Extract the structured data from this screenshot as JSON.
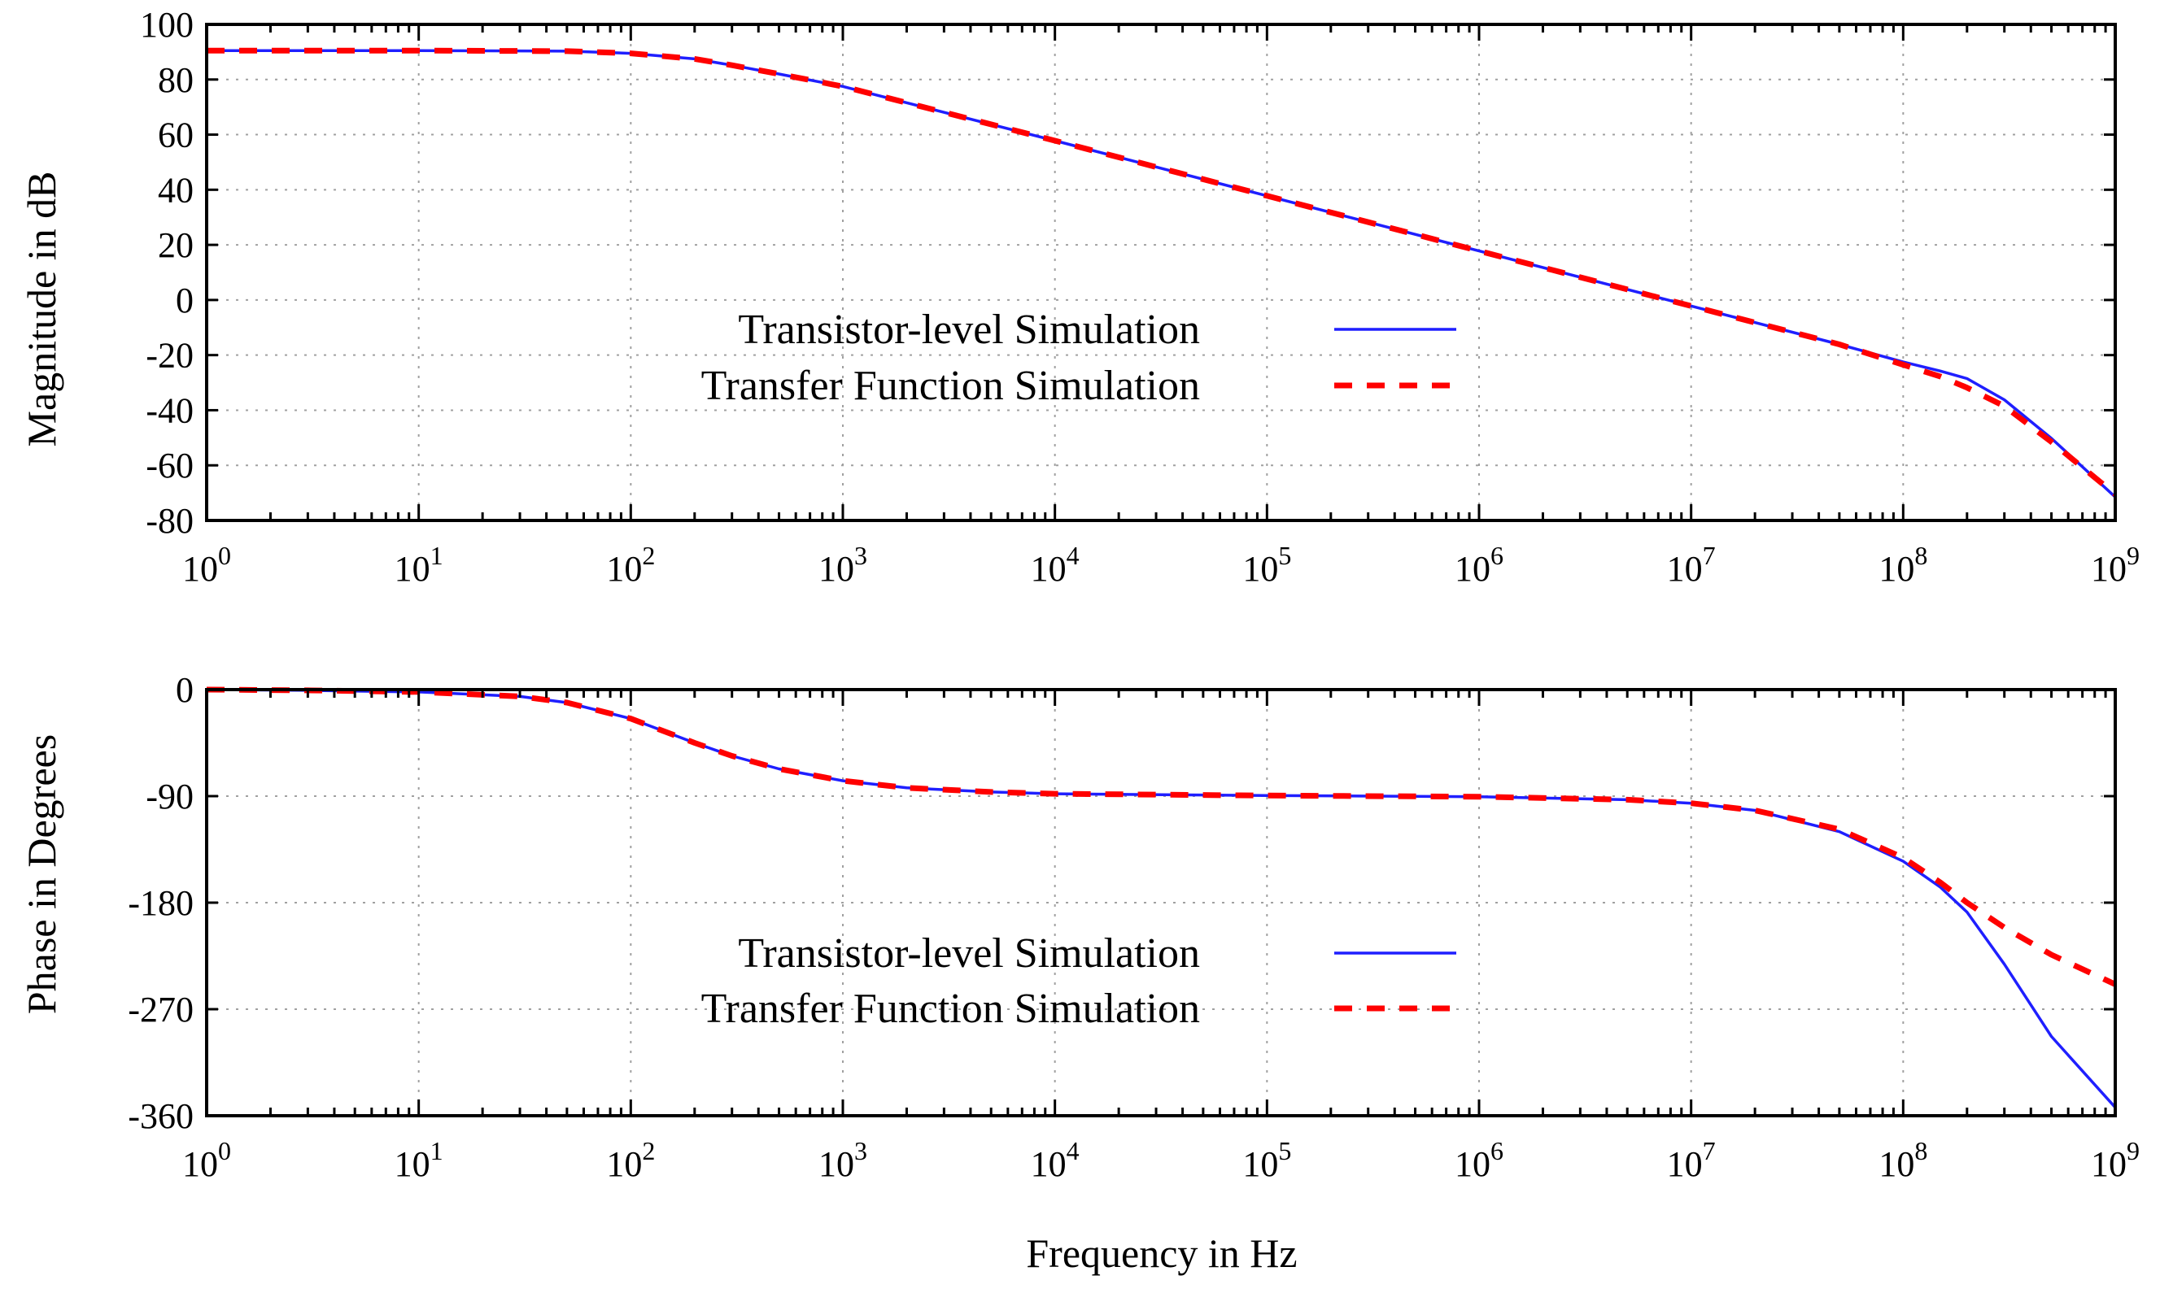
{
  "chart_data": [
    {
      "type": "line",
      "name": "magnitude",
      "ylabel": "Magnitude in dB",
      "xlabel": "",
      "xscale": "log",
      "xlim": [
        1,
        1000000000
      ],
      "ylim": [
        -80,
        100
      ],
      "yticks": [
        100,
        80,
        60,
        40,
        20,
        0,
        -20,
        -40,
        -60,
        -80
      ],
      "ytick_labels": [
        "100",
        "80",
        "60",
        "40",
        "20",
        "0",
        "-20",
        "-40",
        "-60",
        "-80"
      ],
      "xtick_base": "10",
      "xtick_exponents": [
        "0",
        "1",
        "2",
        "3",
        "4",
        "5",
        "6",
        "7",
        "8",
        "9"
      ],
      "grid": true,
      "legend": "center",
      "series": [
        {
          "name": "Transistor-level Simulation",
          "color": "#1f1fff",
          "style": "solid",
          "x": [
            1,
            10,
            50,
            100,
            200,
            300,
            500,
            1000,
            10000,
            100000,
            1000000,
            10000000,
            50000000,
            100000000,
            150000000,
            200000000,
            300000000,
            500000000,
            1000000000
          ],
          "y": [
            90.5,
            90.5,
            90.3,
            89.5,
            87.5,
            85.2,
            82,
            77.5,
            57.8,
            37.8,
            17.8,
            -2.2,
            -16.1,
            -22.5,
            -25.8,
            -28.5,
            -36.2,
            -50.2,
            -71.5
          ]
        },
        {
          "name": "Transfer Function Simulation",
          "color": "#ff0000",
          "style": "dashed",
          "x": [
            1,
            10,
            50,
            100,
            200,
            300,
            500,
            1000,
            10000,
            100000,
            1000000,
            10000000,
            50000000,
            100000000,
            150000000,
            200000000,
            300000000,
            500000000,
            1000000000
          ],
          "y": [
            90.5,
            90.5,
            90.3,
            89.5,
            87.5,
            85.2,
            82,
            77.5,
            57.8,
            37.8,
            17.8,
            -2.2,
            -16.1,
            -23.5,
            -27.8,
            -31.8,
            -38.5,
            -51.5,
            -70.5
          ]
        }
      ]
    },
    {
      "type": "line",
      "name": "phase",
      "ylabel": "Phase in Degrees",
      "xlabel": "Frequency in Hz",
      "xscale": "log",
      "xlim": [
        1,
        1000000000
      ],
      "ylim": [
        -360,
        0
      ],
      "yticks": [
        0,
        -90,
        -180,
        -270,
        -360
      ],
      "ytick_labels": [
        "0",
        "-90",
        "-180",
        "-270",
        "-360"
      ],
      "xtick_base": "10",
      "xtick_exponents": [
        "0",
        "1",
        "2",
        "3",
        "4",
        "5",
        "6",
        "7",
        "8",
        "9"
      ],
      "grid": true,
      "legend": "center",
      "series": [
        {
          "name": "Transistor-level Simulation",
          "color": "#1f1fff",
          "style": "solid",
          "x": [
            1,
            3,
            10,
            30,
            50,
            100,
            200,
            300,
            500,
            1000,
            2000,
            5000,
            10000,
            100000,
            1000000,
            5000000,
            10000000,
            20000000,
            50000000,
            100000000,
            150000000,
            200000000,
            300000000,
            500000000,
            1000000000
          ],
          "y": [
            0,
            -0.6,
            -2,
            -5.8,
            -11,
            -24.5,
            -45,
            -56,
            -67,
            -77,
            -83,
            -86.5,
            -88,
            -89.5,
            -90.5,
            -93,
            -96,
            -102,
            -120,
            -145,
            -167,
            -188,
            -232,
            -293,
            -353
          ]
        },
        {
          "name": "Transfer Function Simulation",
          "color": "#ff0000",
          "style": "dashed",
          "x": [
            1,
            3,
            10,
            30,
            50,
            100,
            200,
            300,
            500,
            1000,
            2000,
            5000,
            10000,
            100000,
            1000000,
            5000000,
            10000000,
            20000000,
            50000000,
            100000000,
            150000000,
            200000000,
            300000000,
            500000000,
            1000000000
          ],
          "y": [
            0,
            -0.6,
            -2,
            -5.8,
            -11,
            -24.5,
            -45,
            -56,
            -67,
            -77,
            -83,
            -86.5,
            -88,
            -89.5,
            -90.5,
            -93,
            -96,
            -102,
            -118,
            -142,
            -163,
            -180,
            -201,
            -224,
            -249
          ]
        }
      ]
    }
  ]
}
